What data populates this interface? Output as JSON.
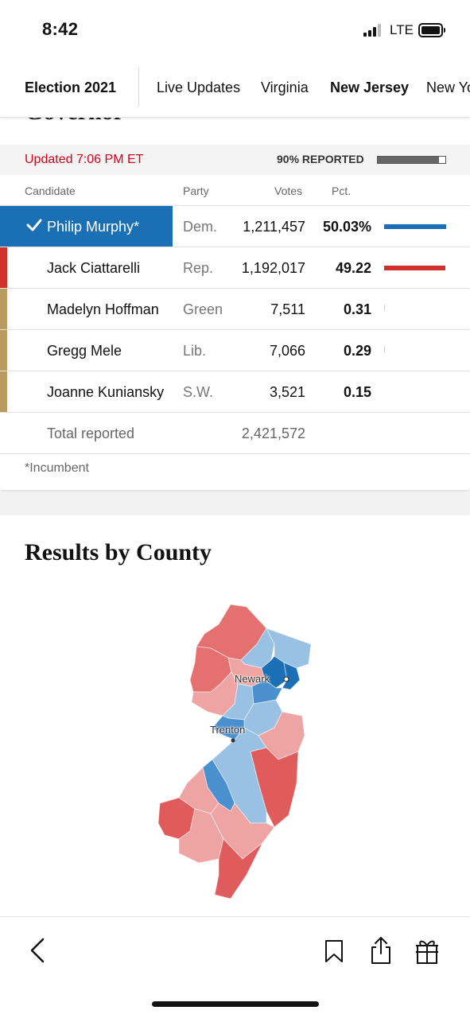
{
  "status_bar": {
    "time": "8:42",
    "network": "LTE"
  },
  "nav": {
    "brand": "Election 2021",
    "tabs": [
      {
        "label": "Live Updates",
        "active": false
      },
      {
        "label": "Virginia",
        "active": false
      },
      {
        "label": "New Jersey",
        "active": true
      },
      {
        "label": "New York",
        "active": false
      }
    ]
  },
  "race": {
    "title": "Governor",
    "updated": "Updated 7:06 PM ET",
    "reported_label": "90% REPORTED",
    "reported_fraction": 0.9,
    "headers": {
      "candidate": "Candidate",
      "party": "Party",
      "votes": "Votes",
      "pct": "Pct."
    },
    "candidates": [
      {
        "name": "Philip Murphy*",
        "party": "Dem.",
        "votes": "1,211,457",
        "pct": "50.03%",
        "winner": true,
        "color": "#1a6fb5",
        "pct_value": 50.03
      },
      {
        "name": "Jack Ciattarelli",
        "party": "Rep.",
        "votes": "1,192,017",
        "pct": "49.22",
        "winner": false,
        "color": "#d0312d",
        "pct_value": 49.22
      },
      {
        "name": "Madelyn Hoffman",
        "party": "Green",
        "votes": "7,511",
        "pct": "0.31",
        "winner": false,
        "color": "#b89b5e",
        "pct_value": 0.31
      },
      {
        "name": "Gregg Mele",
        "party": "Lib.",
        "votes": "7,066",
        "pct": "0.29",
        "winner": false,
        "color": "#b89b5e",
        "pct_value": 0.29
      },
      {
        "name": "Joanne Kuniansky",
        "party": "S.W.",
        "votes": "3,521",
        "pct": "0.15",
        "winner": false,
        "color": "#b89b5e",
        "pct_value": 0.15
      }
    ],
    "total_label": "Total reported",
    "total_votes": "2,421,572",
    "footnote": "*Incumbent"
  },
  "county_section": {
    "title": "Results by County",
    "cities": [
      "Newark",
      "Trenton"
    ]
  },
  "toolbar": {
    "icons": [
      "back-icon",
      "bookmark-icon",
      "share-icon",
      "gift-icon"
    ]
  }
}
